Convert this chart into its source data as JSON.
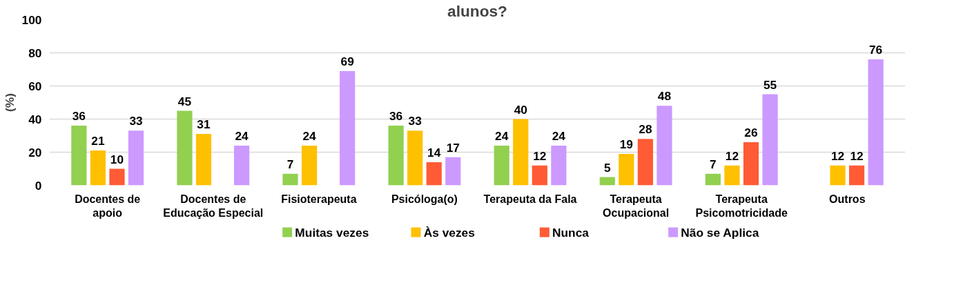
{
  "chart_data": {
    "type": "bar",
    "title": "alunos?",
    "ylabel": "(%)",
    "categories": [
      "Docentes de\napoio",
      "Docentes de\nEducação Especial",
      "Fisioterapeuta",
      "Psicóloga(o)",
      "Terapeuta da Fala",
      "Terapeuta\nOcupacional",
      "Terapeuta\nPsicomotricidade",
      "Outros"
    ],
    "series": [
      {
        "name": "Muitas vezes",
        "color": "#92d050",
        "values": [
          36,
          45,
          7,
          36,
          24,
          5,
          7,
          null
        ]
      },
      {
        "name": "Às vezes",
        "color": "#ffc000",
        "values": [
          21,
          31,
          24,
          33,
          40,
          19,
          12,
          12
        ]
      },
      {
        "name": "Nunca",
        "color": "#ff5b35",
        "values": [
          10,
          null,
          null,
          14,
          12,
          28,
          26,
          12
        ]
      },
      {
        "name": "Não se Aplica",
        "color": "#cc99ff",
        "values": [
          33,
          24,
          69,
          17,
          24,
          48,
          55,
          76
        ]
      }
    ],
    "ylim": [
      0,
      100
    ],
    "yticks": [
      0,
      20,
      40,
      60,
      80,
      100
    ],
    "grid": "y",
    "legend": "bottom",
    "data_labels": true
  }
}
